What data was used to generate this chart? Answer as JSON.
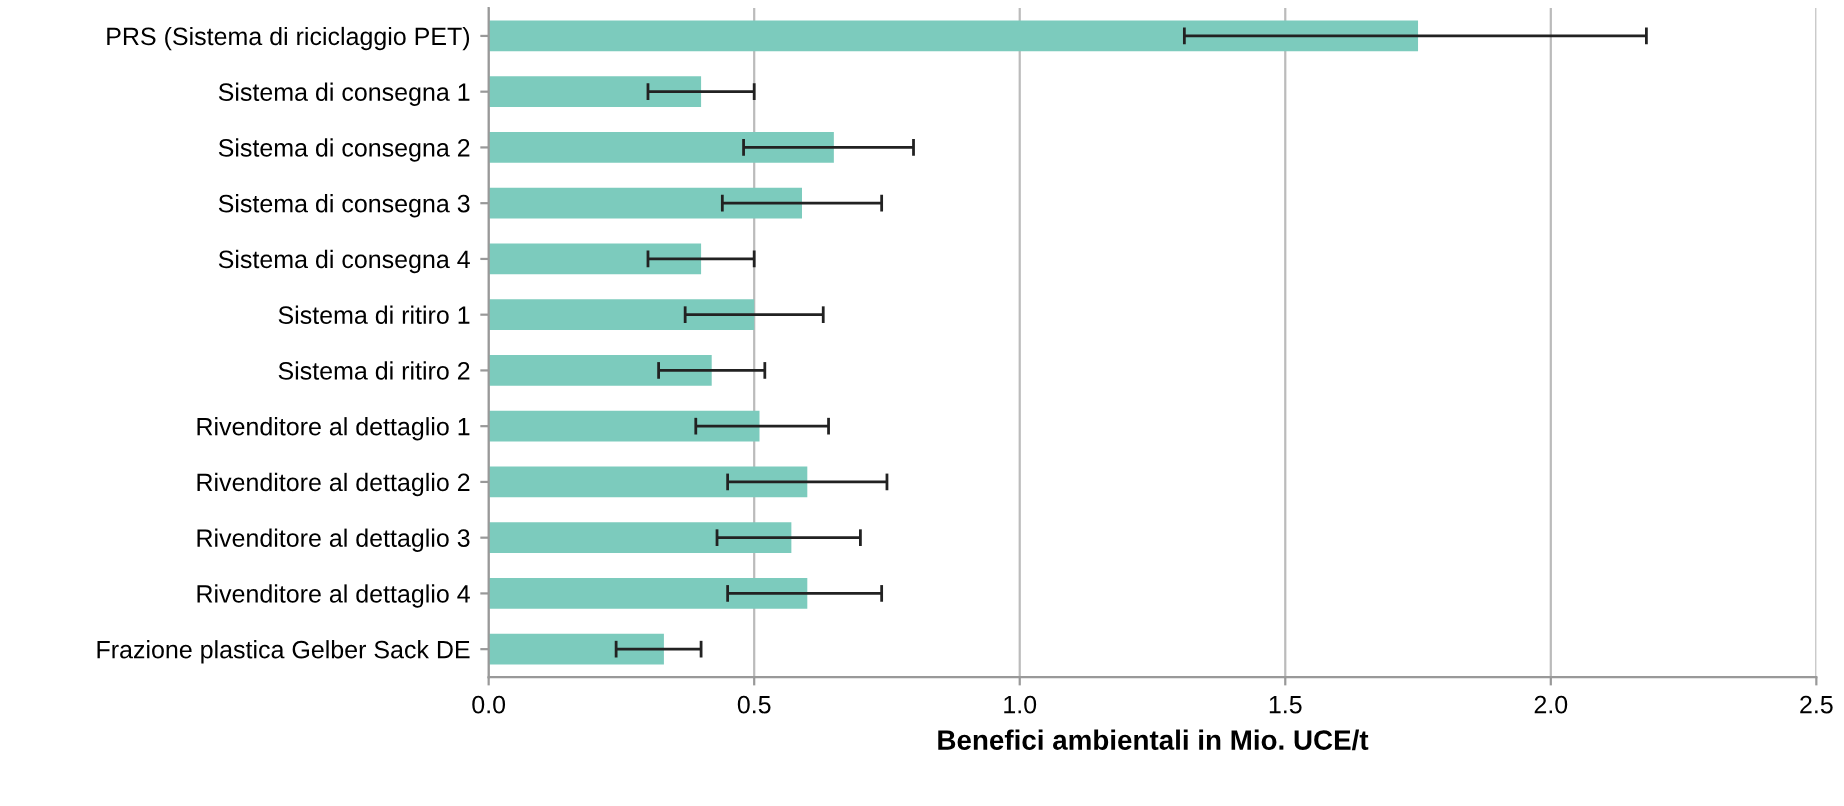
{
  "chart_data": {
    "type": "bar",
    "orientation": "horizontal",
    "xlabel": "Benefici ambientali in Mio. UCE/t",
    "categories": [
      "PRS (Sistema di riciclaggio PET)",
      "Sistema di consegna 1",
      "Sistema di consegna 2",
      "Sistema di consegna 3",
      "Sistema di consegna 4",
      "Sistema di ritiro 1",
      "Sistema di ritiro 2",
      "Rivenditore al dettaglio 1",
      "Rivenditore al dettaglio 2",
      "Rivenditore al dettaglio 3",
      "Rivenditore al dettaglio 4",
      "Frazione plastica Gelber Sack DE"
    ],
    "values": [
      1.75,
      0.4,
      0.65,
      0.59,
      0.4,
      0.5,
      0.42,
      0.51,
      0.6,
      0.57,
      0.6,
      0.33
    ],
    "errors": [
      [
        1.31,
        2.18
      ],
      [
        0.3,
        0.5
      ],
      [
        0.48,
        0.8
      ],
      [
        0.44,
        0.74
      ],
      [
        0.3,
        0.5
      ],
      [
        0.37,
        0.63
      ],
      [
        0.32,
        0.52
      ],
      [
        0.39,
        0.64
      ],
      [
        0.45,
        0.75
      ],
      [
        0.43,
        0.7
      ],
      [
        0.45,
        0.74
      ],
      [
        0.24,
        0.4
      ]
    ],
    "color": "#7ccbbd",
    "xlim": [
      0,
      2.5
    ],
    "xticks": [
      {
        "value": 0,
        "label": "0.0"
      },
      {
        "value": 0.5,
        "label": "0.5"
      },
      {
        "value": 1,
        "label": "1.0"
      },
      {
        "value": 1.5,
        "label": "1.5"
      },
      {
        "value": 2,
        "label": "2.0"
      },
      {
        "value": 2.5,
        "label": "2.5"
      }
    ],
    "grid": "x"
  }
}
